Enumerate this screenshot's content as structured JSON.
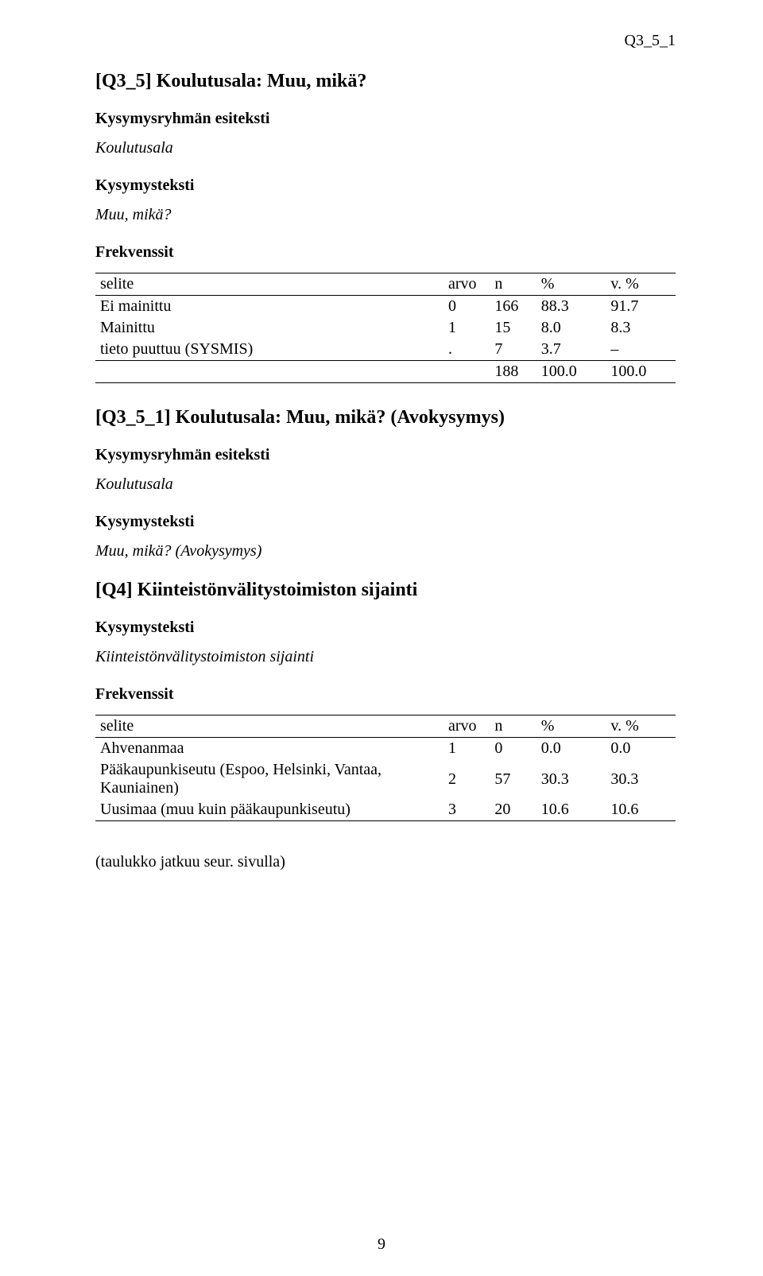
{
  "header_right": "Q3_5_1",
  "sec1": {
    "title": "[Q3_5] Koulutusala: Muu, mikä?",
    "group_label": "Kysymysryhmän esiteksti",
    "group_text": "Koulutusala",
    "qlabel": "Kysymysteksti",
    "qtext": "Muu, mikä?",
    "freq_label": "Frekvenssit",
    "th_selite": "selite",
    "th_arvo": "arvo",
    "th_n": "n",
    "th_pct": "%",
    "th_vpct": "v. %",
    "rows": [
      {
        "selite": "Ei mainittu",
        "arvo": "0",
        "n": "166",
        "pct": "88.3",
        "vpct": "91.7"
      },
      {
        "selite": "Mainittu",
        "arvo": "1",
        "n": "15",
        "pct": "8.0",
        "vpct": "8.3"
      },
      {
        "selite": "tieto puuttuu (SYSMIS)",
        "arvo": ".",
        "n": "7",
        "pct": "3.7",
        "vpct": "–"
      }
    ],
    "total": {
      "selite": "",
      "arvo": "",
      "n": "188",
      "pct": "100.0",
      "vpct": "100.0"
    }
  },
  "sec2": {
    "title": "[Q3_5_1] Koulutusala: Muu, mikä? (Avokysymys)",
    "group_label": "Kysymysryhmän esiteksti",
    "group_text": "Koulutusala",
    "qlabel": "Kysymysteksti",
    "qtext": "Muu, mikä? (Avokysymys)"
  },
  "sec3": {
    "title": "[Q4] Kiinteistönvälitystoimiston sijainti",
    "qlabel": "Kysymysteksti",
    "qtext": "Kiinteistönvälitystoimiston sijainti",
    "freq_label": "Frekvenssit",
    "th_selite": "selite",
    "th_arvo": "arvo",
    "th_n": "n",
    "th_pct": "%",
    "th_vpct": "v. %",
    "rows": [
      {
        "selite": "Ahvenanmaa",
        "arvo": "1",
        "n": "0",
        "pct": "0.0",
        "vpct": "0.0"
      },
      {
        "selite": "Pääkaupunkiseutu (Espoo, Helsinki, Vantaa, Kauniainen)",
        "arvo": "2",
        "n": "57",
        "pct": "30.3",
        "vpct": "30.3"
      },
      {
        "selite": "Uusimaa (muu kuin pääkaupunkiseutu)",
        "arvo": "3",
        "n": "20",
        "pct": "10.6",
        "vpct": "10.6"
      }
    ]
  },
  "note": "(taulukko jatkuu seur. sivulla)",
  "page_number": "9"
}
